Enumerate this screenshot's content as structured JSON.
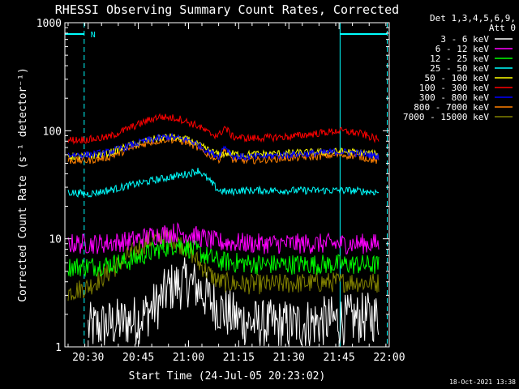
{
  "chart_data": {
    "type": "line",
    "title": "RHESSI Observing Summary Count Rates, Corrected",
    "xlabel": "Start Time (24-Jul-05 20:23:02)",
    "ylabel": "Corrected Count Rate (s⁻¹ detector⁻¹)",
    "yscale": "log",
    "ylim": [
      1,
      1000
    ],
    "xlim_minutes": [
      20.4,
      22.0
    ],
    "xlim_hours": [
      20.3839,
      22.0
    ],
    "x_tick_labels": [
      "20:30",
      "20:45",
      "21:00",
      "21:15",
      "21:30",
      "21:45",
      "22:00"
    ],
    "x_tick_values": [
      20.5,
      20.75,
      21.0,
      21.25,
      21.5,
      21.75,
      22.0
    ],
    "y_tick_labels": [
      "1",
      "10",
      "100",
      "1000"
    ],
    "y_tick_values": [
      1,
      10,
      100,
      1000
    ],
    "legend_header": [
      "Det 1,3,4,5,6,9,",
      "Att 0"
    ],
    "legend_position": "right",
    "night_marker_label": "N",
    "night_marker_color": "#00ffff",
    "night_marker_intervals_hours": [
      [
        20.3839,
        20.48
      ],
      [
        21.755,
        21.99
      ]
    ],
    "timestamp": "18-Oct-2021 13:38",
    "series": [
      {
        "name": "3 - 6 keV",
        "color": "#ffffff",
        "x": [
          20.5,
          20.6,
          20.75,
          20.85,
          20.9,
          21.0,
          21.05,
          21.1,
          21.15,
          21.2,
          21.25,
          21.35,
          21.5,
          21.65,
          21.8,
          21.95
        ],
        "y": [
          1.5,
          1.6,
          1.8,
          2.5,
          3.5,
          4.0,
          3.5,
          2.8,
          2.3,
          2.0,
          1.8,
          1.6,
          1.6,
          1.7,
          1.8,
          1.9
        ]
      },
      {
        "name": "6 - 12 keV",
        "color": "#ff00ff",
        "x": [
          20.4,
          20.55,
          20.7,
          20.85,
          20.95,
          21.05,
          21.1,
          21.15,
          21.25,
          21.35,
          21.5,
          21.65,
          21.8,
          21.95
        ],
        "y": [
          9.0,
          9.0,
          9.5,
          11.0,
          11.5,
          10.5,
          9.8,
          9.3,
          9.2,
          9.0,
          9.0,
          9.0,
          9.0,
          9.0
        ]
      },
      {
        "name": "12 - 25 keV",
        "color": "#00ff00",
        "x": [
          20.4,
          20.55,
          20.7,
          20.85,
          20.95,
          21.05,
          21.1,
          21.15,
          21.25,
          21.35,
          21.5,
          21.65,
          21.8,
          21.95
        ],
        "y": [
          5.5,
          5.6,
          6.2,
          8.0,
          9.0,
          7.5,
          6.8,
          6.2,
          6.0,
          5.8,
          5.8,
          5.8,
          5.8,
          5.7
        ]
      },
      {
        "name": "25 - 50 keV",
        "color": "#00ffff",
        "x": [
          20.4,
          20.5,
          20.6,
          20.7,
          20.8,
          20.9,
          21.0,
          21.05,
          21.1,
          21.15,
          21.2,
          21.25,
          21.4,
          21.6,
          21.8,
          21.95
        ],
        "y": [
          27,
          26,
          28,
          31,
          34,
          37,
          40,
          43,
          35,
          28,
          27,
          28,
          28,
          28,
          28,
          27
        ]
      },
      {
        "name": "50 - 100 keV",
        "color": "#ffff00",
        "x": [
          20.4,
          20.5,
          20.6,
          20.7,
          20.8,
          20.9,
          21.0,
          21.05,
          21.1,
          21.15,
          21.2,
          21.25,
          21.4,
          21.6,
          21.75,
          21.85,
          21.95
        ],
        "y": [
          58,
          58,
          62,
          72,
          82,
          88,
          82,
          74,
          66,
          60,
          62,
          60,
          61,
          63,
          64,
          63,
          60
        ]
      },
      {
        "name": "100 - 300 keV",
        "color": "#ff0000",
        "x": [
          20.4,
          20.5,
          20.6,
          20.7,
          20.8,
          20.85,
          20.95,
          21.05,
          21.1,
          21.15,
          21.18,
          21.22,
          21.3,
          21.5,
          21.65,
          21.75,
          21.85,
          21.95
        ],
        "y": [
          82,
          83,
          87,
          105,
          125,
          135,
          130,
          110,
          95,
          90,
          108,
          88,
          85,
          88,
          95,
          100,
          95,
          82
        ]
      },
      {
        "name": "300 - 800 keV",
        "color": "#0000ff",
        "x": [
          20.4,
          20.5,
          20.6,
          20.7,
          20.8,
          20.9,
          21.0,
          21.05,
          21.1,
          21.15,
          21.18,
          21.22,
          21.3,
          21.5,
          21.65,
          21.75,
          21.85,
          21.95
        ],
        "y": [
          60,
          60,
          63,
          72,
          82,
          88,
          82,
          74,
          64,
          58,
          73,
          58,
          57,
          60,
          62,
          64,
          62,
          58
        ]
      },
      {
        "name": "800 - 7000 keV",
        "color": "#ff8000",
        "x": [
          20.4,
          20.5,
          20.6,
          20.7,
          20.8,
          20.9,
          21.0,
          21.05,
          21.1,
          21.15,
          21.18,
          21.22,
          21.3,
          21.5,
          21.65,
          21.75,
          21.85,
          21.95
        ],
        "y": [
          53,
          53,
          57,
          67,
          78,
          84,
          78,
          68,
          60,
          54,
          66,
          54,
          53,
          56,
          58,
          60,
          58,
          52
        ]
      },
      {
        "name": "7000 - 15000 keV",
        "color": "#808000",
        "x": [
          20.4,
          20.5,
          20.6,
          20.7,
          20.8,
          20.9,
          21.0,
          21.05,
          21.1,
          21.15,
          21.25,
          21.4,
          21.6,
          21.8,
          21.95
        ],
        "y": [
          3.2,
          3.6,
          4.8,
          7.0,
          9.5,
          10.5,
          8.0,
          6.0,
          4.8,
          4.0,
          3.8,
          3.8,
          3.9,
          4.0,
          3.9
        ]
      }
    ]
  }
}
